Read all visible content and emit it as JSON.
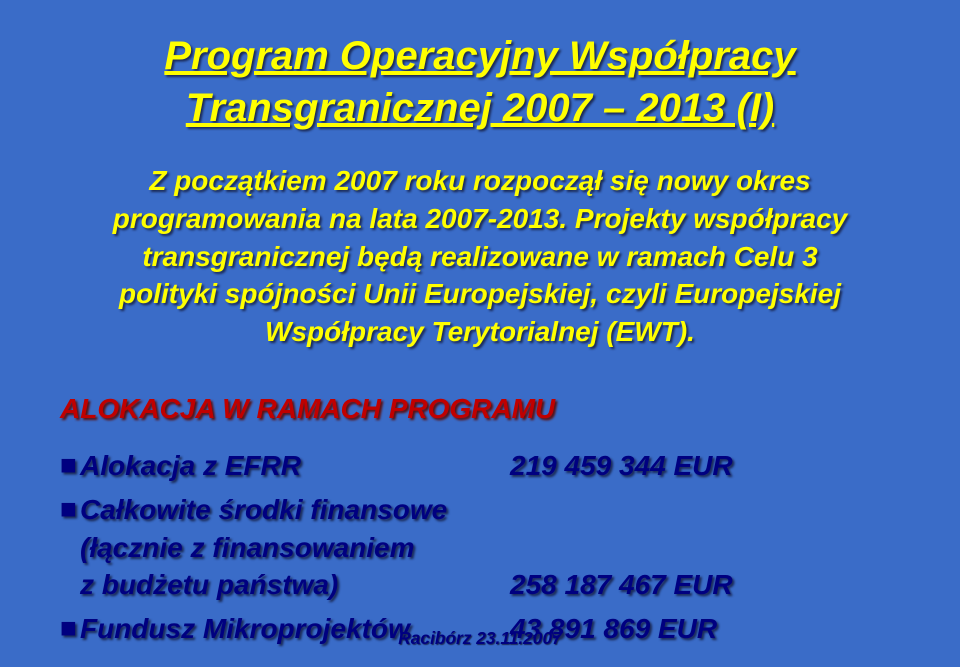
{
  "background_color": "#3a6cc8",
  "title": {
    "line1": "Program Operacyjny Współpracy",
    "line2": "Transgranicznej 2007 – 2013 (I)",
    "color": "#ffff00",
    "fontsize_pt": 30,
    "shadow_color": "#1b2a57"
  },
  "intro": {
    "text": "Z początkiem 2007 roku rozpoczął się nowy okres programowania na lata 2007-2013. Projekty współpracy transgranicznej będą realizowane w ramach Celu 3 polityki spójności Unii Europejskiej, czyli Europejskiej Współpracy Terytorialnej (EWT).",
    "color": "#ffff00",
    "fontsize_pt": 21,
    "shadow_color": "#1b2a57"
  },
  "section_heading": {
    "text": "ALOKACJA W RAMACH PROGRAMU",
    "color": "#c00000",
    "fontsize_pt": 21,
    "shadow_color": "#5a1010"
  },
  "body": {
    "color": "#000080",
    "fontsize_pt": 21,
    "bullet_color": "#000080",
    "shadow_color": "#1b2a57"
  },
  "allocations": [
    {
      "label": "Alokacja z EFRR",
      "value": "219 459 344 EUR"
    },
    {
      "label": "Całkowite środki finansowe\n(łącznie z finansowaniem\nz budżetu państwa)",
      "value": "258 187 467 EUR"
    },
    {
      "label": "Fundusz Mikroprojektów",
      "value": "43 891 869 EUR"
    }
  ],
  "footer": {
    "text": "Racibórz 23.11.2007",
    "color": "#000080",
    "fontsize_pt": 13,
    "shadow_color": "#1b2a57"
  }
}
